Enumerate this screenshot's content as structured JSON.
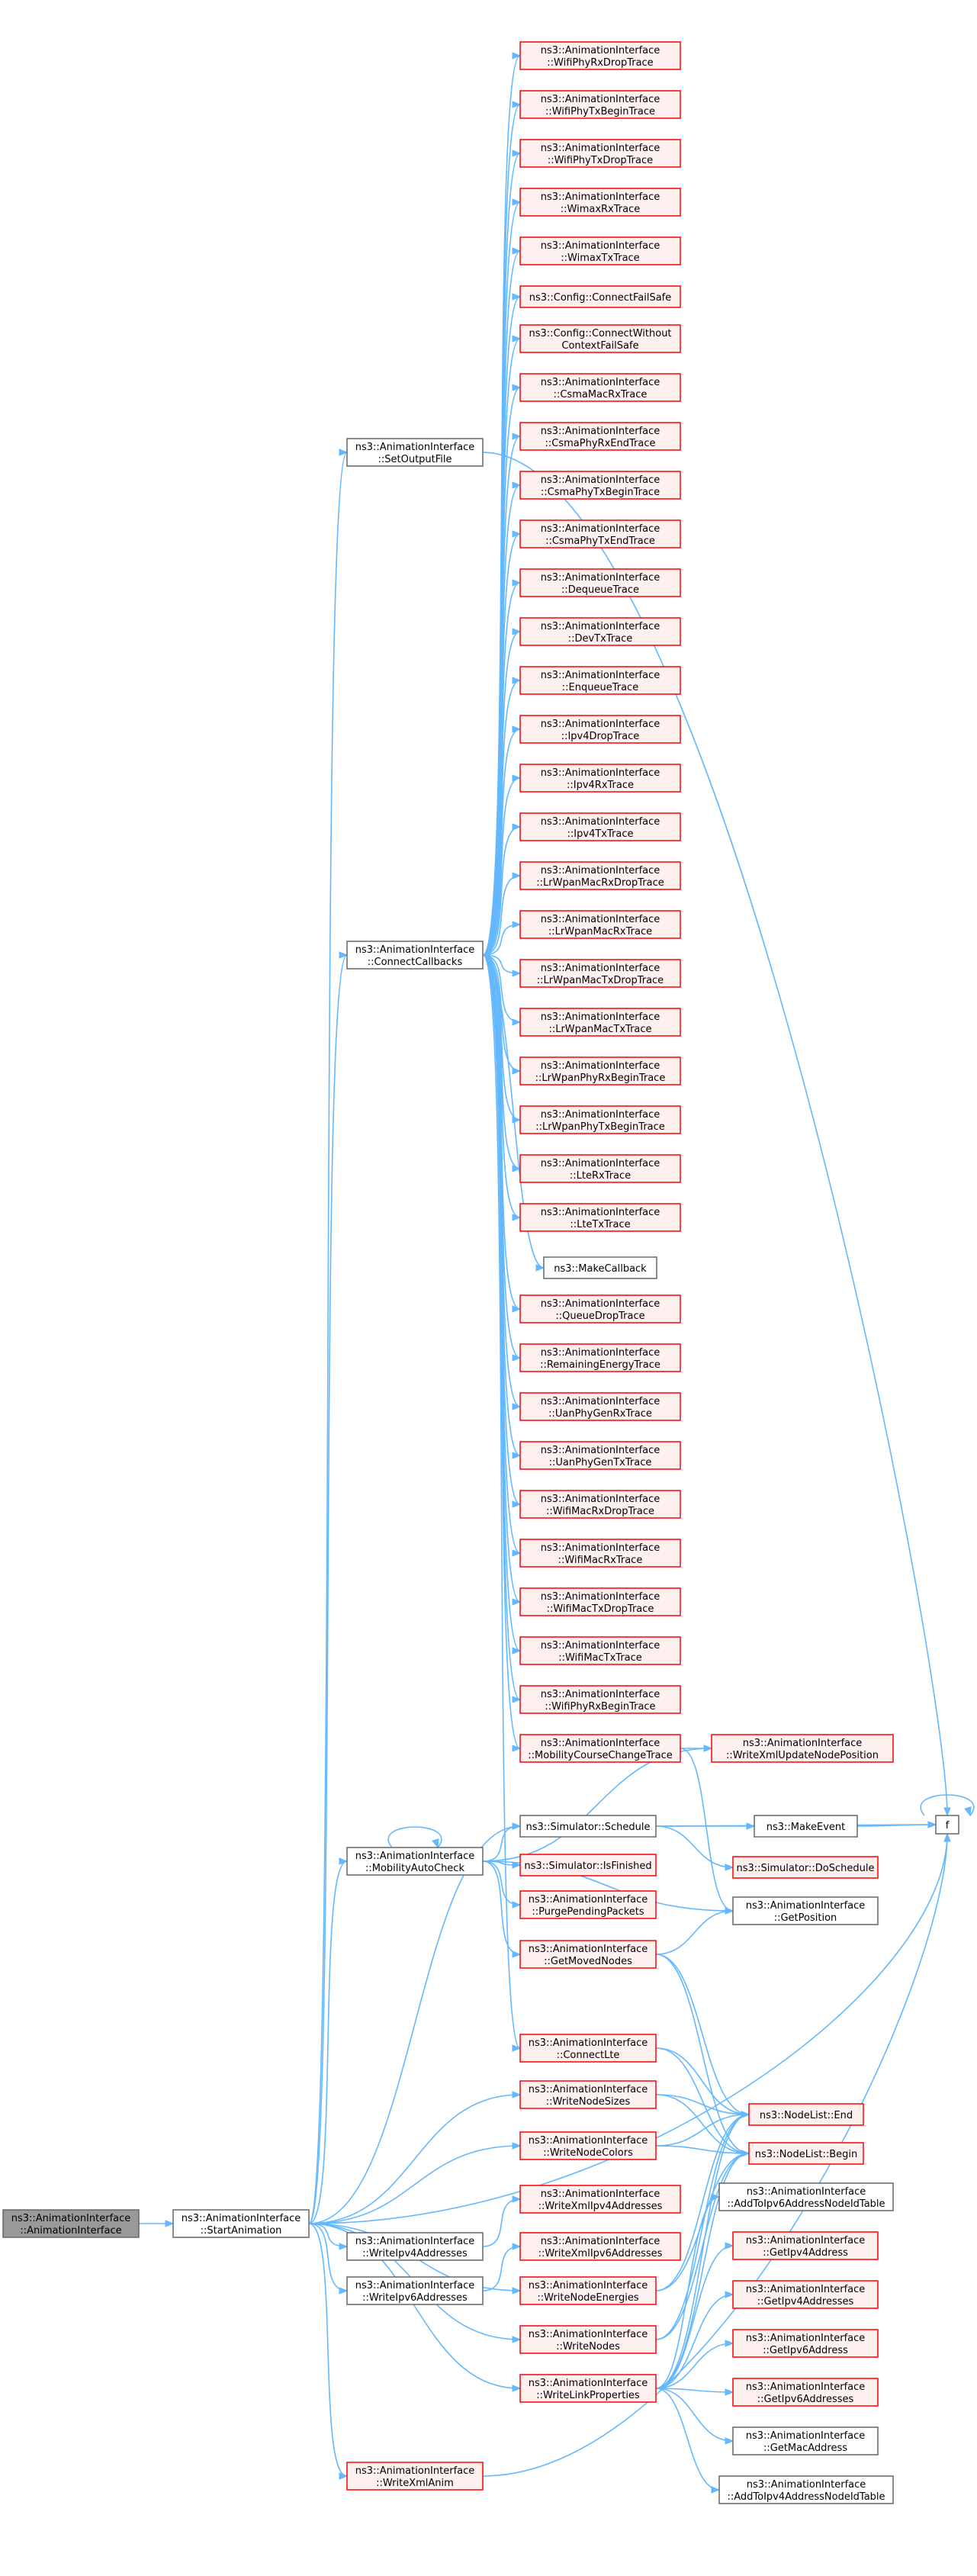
{
  "colors": {
    "edge": "#63b8ff",
    "focus_fill": "#999999",
    "focus_border": "#666666",
    "normal_fill": "#ffffff",
    "normal_border": "#666666",
    "red_fill": "#fff0f0",
    "red_border": "#ff0000"
  },
  "nodes": [
    {
      "id": "root",
      "lines": [
        "ns3::AnimationInterface",
        "::AnimationInterface"
      ],
      "style": "focus"
    },
    {
      "id": "start",
      "lines": [
        "ns3::AnimationInterface",
        "::StartAnimation"
      ],
      "style": "normal"
    },
    {
      "id": "setout",
      "lines": [
        "ns3::AnimationInterface",
        "::SetOutputFile"
      ],
      "style": "normal"
    },
    {
      "id": "conncb",
      "lines": [
        "ns3::AnimationInterface",
        "::ConnectCallbacks"
      ],
      "style": "normal"
    },
    {
      "id": "mob",
      "lines": [
        "ns3::AnimationInterface",
        "::MobilityAutoCheck"
      ],
      "style": "normal"
    },
    {
      "id": "wipv4",
      "lines": [
        "ns3::AnimationInterface",
        "::WriteIpv4Addresses"
      ],
      "style": "normal"
    },
    {
      "id": "wipv6",
      "lines": [
        "ns3::AnimationInterface",
        "::WriteIpv6Addresses"
      ],
      "style": "normal"
    },
    {
      "id": "wxanim",
      "lines": [
        "ns3::AnimationInterface",
        "::WriteXmlAnim"
      ],
      "style": "red"
    },
    {
      "id": "c01",
      "lines": [
        "ns3::AnimationInterface",
        "::WifiPhyRxDropTrace"
      ],
      "style": "red"
    },
    {
      "id": "c02",
      "lines": [
        "ns3::AnimationInterface",
        "::WifiPhyTxBeginTrace"
      ],
      "style": "red"
    },
    {
      "id": "c03",
      "lines": [
        "ns3::AnimationInterface",
        "::WifiPhyTxDropTrace"
      ],
      "style": "red"
    },
    {
      "id": "c04",
      "lines": [
        "ns3::AnimationInterface",
        "::WimaxRxTrace"
      ],
      "style": "red"
    },
    {
      "id": "c05",
      "lines": [
        "ns3::AnimationInterface",
        "::WimaxTxTrace"
      ],
      "style": "red"
    },
    {
      "id": "c06",
      "lines": [
        "ns3::Config::ConnectFailSafe"
      ],
      "style": "red"
    },
    {
      "id": "c07",
      "lines": [
        "ns3::Config::ConnectWithout",
        "ContextFailSafe"
      ],
      "style": "red"
    },
    {
      "id": "c08",
      "lines": [
        "ns3::AnimationInterface",
        "::CsmaMacRxTrace"
      ],
      "style": "red"
    },
    {
      "id": "c09",
      "lines": [
        "ns3::AnimationInterface",
        "::CsmaPhyRxEndTrace"
      ],
      "style": "red"
    },
    {
      "id": "c10",
      "lines": [
        "ns3::AnimationInterface",
        "::CsmaPhyTxBeginTrace"
      ],
      "style": "red"
    },
    {
      "id": "c11",
      "lines": [
        "ns3::AnimationInterface",
        "::CsmaPhyTxEndTrace"
      ],
      "style": "red"
    },
    {
      "id": "c12",
      "lines": [
        "ns3::AnimationInterface",
        "::DequeueTrace"
      ],
      "style": "red"
    },
    {
      "id": "c13",
      "lines": [
        "ns3::AnimationInterface",
        "::DevTxTrace"
      ],
      "style": "red"
    },
    {
      "id": "c14",
      "lines": [
        "ns3::AnimationInterface",
        "::EnqueueTrace"
      ],
      "style": "red"
    },
    {
      "id": "c15",
      "lines": [
        "ns3::AnimationInterface",
        "::Ipv4DropTrace"
      ],
      "style": "red"
    },
    {
      "id": "c16",
      "lines": [
        "ns3::AnimationInterface",
        "::Ipv4RxTrace"
      ],
      "style": "red"
    },
    {
      "id": "c17",
      "lines": [
        "ns3::AnimationInterface",
        "::Ipv4TxTrace"
      ],
      "style": "red"
    },
    {
      "id": "c18",
      "lines": [
        "ns3::AnimationInterface",
        "::LrWpanMacRxDropTrace"
      ],
      "style": "red"
    },
    {
      "id": "c19",
      "lines": [
        "ns3::AnimationInterface",
        "::LrWpanMacRxTrace"
      ],
      "style": "red"
    },
    {
      "id": "c20",
      "lines": [
        "ns3::AnimationInterface",
        "::LrWpanMacTxDropTrace"
      ],
      "style": "red"
    },
    {
      "id": "c21",
      "lines": [
        "ns3::AnimationInterface",
        "::LrWpanMacTxTrace"
      ],
      "style": "red"
    },
    {
      "id": "c22",
      "lines": [
        "ns3::AnimationInterface",
        "::LrWpanPhyRxBeginTrace"
      ],
      "style": "red"
    },
    {
      "id": "c23",
      "lines": [
        "ns3::AnimationInterface",
        "::LrWpanPhyTxBeginTrace"
      ],
      "style": "red"
    },
    {
      "id": "c24",
      "lines": [
        "ns3::AnimationInterface",
        "::LteRxTrace"
      ],
      "style": "red"
    },
    {
      "id": "c25",
      "lines": [
        "ns3::AnimationInterface",
        "::LteTxTrace"
      ],
      "style": "red"
    },
    {
      "id": "c26",
      "lines": [
        "ns3::MakeCallback"
      ],
      "style": "normal"
    },
    {
      "id": "c27",
      "lines": [
        "ns3::AnimationInterface",
        "::QueueDropTrace"
      ],
      "style": "red"
    },
    {
      "id": "c28",
      "lines": [
        "ns3::AnimationInterface",
        "::RemainingEnergyTrace"
      ],
      "style": "red"
    },
    {
      "id": "c29",
      "lines": [
        "ns3::AnimationInterface",
        "::UanPhyGenRxTrace"
      ],
      "style": "red"
    },
    {
      "id": "c30",
      "lines": [
        "ns3::AnimationInterface",
        "::UanPhyGenTxTrace"
      ],
      "style": "red"
    },
    {
      "id": "c31",
      "lines": [
        "ns3::AnimationInterface",
        "::WifiMacRxDropTrace"
      ],
      "style": "red"
    },
    {
      "id": "c32",
      "lines": [
        "ns3::AnimationInterface",
        "::WifiMacRxTrace"
      ],
      "style": "red"
    },
    {
      "id": "c33",
      "lines": [
        "ns3::AnimationInterface",
        "::WifiMacTxDropTrace"
      ],
      "style": "red"
    },
    {
      "id": "c34",
      "lines": [
        "ns3::AnimationInterface",
        "::WifiMacTxTrace"
      ],
      "style": "red"
    },
    {
      "id": "c35",
      "lines": [
        "ns3::AnimationInterface",
        "::WifiPhyRxBeginTrace"
      ],
      "style": "red"
    },
    {
      "id": "mct",
      "lines": [
        "ns3::AnimationInterface",
        "::MobilityCourseChangeTrace"
      ],
      "style": "red"
    },
    {
      "id": "simsch",
      "lines": [
        "ns3::Simulator::Schedule"
      ],
      "style": "normal"
    },
    {
      "id": "simfin",
      "lines": [
        "ns3::Simulator::IsFinished"
      ],
      "style": "red"
    },
    {
      "id": "purge",
      "lines": [
        "ns3::AnimationInterface",
        "::PurgePendingPackets"
      ],
      "style": "red"
    },
    {
      "id": "getmoved",
      "lines": [
        "ns3::AnimationInterface",
        "::GetMovedNodes"
      ],
      "style": "red"
    },
    {
      "id": "connlte",
      "lines": [
        "ns3::AnimationInterface",
        "::ConnectLte"
      ],
      "style": "red"
    },
    {
      "id": "wsizes",
      "lines": [
        "ns3::AnimationInterface",
        "::WriteNodeSizes"
      ],
      "style": "red"
    },
    {
      "id": "wcolors",
      "lines": [
        "ns3::AnimationInterface",
        "::WriteNodeColors"
      ],
      "style": "red"
    },
    {
      "id": "wxipv4",
      "lines": [
        "ns3::AnimationInterface",
        "::WriteXmlIpv4Addresses"
      ],
      "style": "red"
    },
    {
      "id": "wxipv6",
      "lines": [
        "ns3::AnimationInterface",
        "::WriteXmlIpv6Addresses"
      ],
      "style": "red"
    },
    {
      "id": "wenergies",
      "lines": [
        "ns3::AnimationInterface",
        "::WriteNodeEnergies"
      ],
      "style": "red"
    },
    {
      "id": "wnodes",
      "lines": [
        "ns3::AnimationInterface",
        "::WriteNodes"
      ],
      "style": "red"
    },
    {
      "id": "wlink",
      "lines": [
        "ns3::AnimationInterface",
        "::WriteLinkProperties"
      ],
      "style": "red"
    },
    {
      "id": "wxupd",
      "lines": [
        "ns3::AnimationInterface",
        "::WriteXmlUpdateNodePosition"
      ],
      "style": "red"
    },
    {
      "id": "mkevent",
      "lines": [
        "ns3::MakeEvent"
      ],
      "style": "normal"
    },
    {
      "id": "dosched",
      "lines": [
        "ns3::Simulator::DoSchedule"
      ],
      "style": "red"
    },
    {
      "id": "getpos",
      "lines": [
        "ns3::AnimationInterface",
        "::GetPosition"
      ],
      "style": "normal"
    },
    {
      "id": "nlend",
      "lines": [
        "ns3::NodeList::End"
      ],
      "style": "red"
    },
    {
      "id": "nlbegin",
      "lines": [
        "ns3::NodeList::Begin"
      ],
      "style": "red"
    },
    {
      "id": "addipv6",
      "lines": [
        "ns3::AnimationInterface",
        "::AddToIpv6AddressNodeIdTable"
      ],
      "style": "normal"
    },
    {
      "id": "getipv4a",
      "lines": [
        "ns3::AnimationInterface",
        "::GetIpv4Address"
      ],
      "style": "red"
    },
    {
      "id": "getipv4as",
      "lines": [
        "ns3::AnimationInterface",
        "::GetIpv4Addresses"
      ],
      "style": "red"
    },
    {
      "id": "getipv6a",
      "lines": [
        "ns3::AnimationInterface",
        "::GetIpv6Address"
      ],
      "style": "red"
    },
    {
      "id": "getipv6as",
      "lines": [
        "ns3::AnimationInterface",
        "::GetIpv6Addresses"
      ],
      "style": "red"
    },
    {
      "id": "getmac",
      "lines": [
        "ns3::AnimationInterface",
        "::GetMacAddress"
      ],
      "style": "normal"
    },
    {
      "id": "addipv4",
      "lines": [
        "ns3::AnimationInterface",
        "::AddToIpv4AddressNodeIdTable"
      ],
      "style": "normal"
    },
    {
      "id": "f",
      "lines": [
        "f"
      ],
      "style": "normal"
    }
  ],
  "edges": [
    [
      "root",
      "start"
    ],
    [
      "start",
      "setout"
    ],
    [
      "start",
      "conncb"
    ],
    [
      "start",
      "mob"
    ],
    [
      "start",
      "simsch"
    ],
    [
      "start",
      "wsizes"
    ],
    [
      "start",
      "wcolors"
    ],
    [
      "start",
      "wipv4"
    ],
    [
      "start",
      "wipv6"
    ],
    [
      "start",
      "wenergies"
    ],
    [
      "start",
      "wnodes"
    ],
    [
      "start",
      "wlink"
    ],
    [
      "start",
      "wxanim"
    ],
    [
      "start",
      "f"
    ],
    [
      "setout",
      "f"
    ],
    [
      "conncb",
      "c01"
    ],
    [
      "conncb",
      "c02"
    ],
    [
      "conncb",
      "c03"
    ],
    [
      "conncb",
      "c04"
    ],
    [
      "conncb",
      "c05"
    ],
    [
      "conncb",
      "c06"
    ],
    [
      "conncb",
      "c07"
    ],
    [
      "conncb",
      "c08"
    ],
    [
      "conncb",
      "c09"
    ],
    [
      "conncb",
      "c10"
    ],
    [
      "conncb",
      "c11"
    ],
    [
      "conncb",
      "c12"
    ],
    [
      "conncb",
      "c13"
    ],
    [
      "conncb",
      "c14"
    ],
    [
      "conncb",
      "c15"
    ],
    [
      "conncb",
      "c16"
    ],
    [
      "conncb",
      "c17"
    ],
    [
      "conncb",
      "c18"
    ],
    [
      "conncb",
      "c19"
    ],
    [
      "conncb",
      "c20"
    ],
    [
      "conncb",
      "c21"
    ],
    [
      "conncb",
      "c22"
    ],
    [
      "conncb",
      "c23"
    ],
    [
      "conncb",
      "c24"
    ],
    [
      "conncb",
      "c25"
    ],
    [
      "conncb",
      "c26"
    ],
    [
      "conncb",
      "c27"
    ],
    [
      "conncb",
      "c28"
    ],
    [
      "conncb",
      "c29"
    ],
    [
      "conncb",
      "c30"
    ],
    [
      "conncb",
      "c31"
    ],
    [
      "conncb",
      "c32"
    ],
    [
      "conncb",
      "c33"
    ],
    [
      "conncb",
      "c34"
    ],
    [
      "conncb",
      "c35"
    ],
    [
      "conncb",
      "mct"
    ],
    [
      "conncb",
      "connlte"
    ],
    [
      "mob",
      "mob"
    ],
    [
      "mob",
      "simsch"
    ],
    [
      "mob",
      "simfin"
    ],
    [
      "mob",
      "purge"
    ],
    [
      "mob",
      "getmoved"
    ],
    [
      "mob",
      "getpos"
    ],
    [
      "mob",
      "wxupd"
    ],
    [
      "mct",
      "wxupd"
    ],
    [
      "mct",
      "getpos"
    ],
    [
      "simsch",
      "mkevent"
    ],
    [
      "simsch",
      "dosched"
    ],
    [
      "simsch",
      "f"
    ],
    [
      "mkevent",
      "f"
    ],
    [
      "f",
      "f"
    ],
    [
      "getmoved",
      "getpos"
    ],
    [
      "getmoved",
      "nlend"
    ],
    [
      "getmoved",
      "nlbegin"
    ],
    [
      "connlte",
      "nlend"
    ],
    [
      "connlte",
      "nlbegin"
    ],
    [
      "wsizes",
      "nlend"
    ],
    [
      "wsizes",
      "nlbegin"
    ],
    [
      "wcolors",
      "nlend"
    ],
    [
      "wcolors",
      "nlbegin"
    ],
    [
      "wipv4",
      "wxipv4"
    ],
    [
      "wipv6",
      "wxipv6"
    ],
    [
      "wenergies",
      "nlend"
    ],
    [
      "wenergies",
      "nlbegin"
    ],
    [
      "wnodes",
      "nlend"
    ],
    [
      "wnodes",
      "nlbegin"
    ],
    [
      "wlink",
      "nlend"
    ],
    [
      "wlink",
      "nlbegin"
    ],
    [
      "wlink",
      "addipv6"
    ],
    [
      "wlink",
      "getipv4a"
    ],
    [
      "wlink",
      "getipv4as"
    ],
    [
      "wlink",
      "getipv6a"
    ],
    [
      "wlink",
      "getipv6as"
    ],
    [
      "wlink",
      "getmac"
    ],
    [
      "wlink",
      "addipv4"
    ],
    [
      "wxanim",
      "f"
    ]
  ]
}
